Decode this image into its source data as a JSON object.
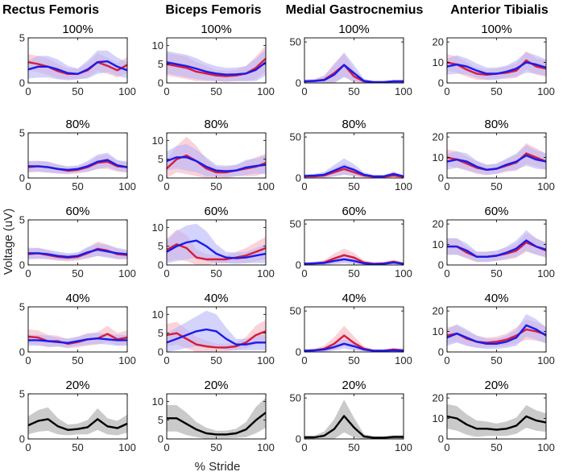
{
  "figure": {
    "ylabel": "Voltage (uV)",
    "xlabel": "% Stride"
  },
  "colors": {
    "series_a": "#d81b3a",
    "series_a_band": "#f7b4bf",
    "series_b": "#1a1aee",
    "series_b_band": "#b6b6f8",
    "pooled": "#000000",
    "pooled_band": "#c4c4c4"
  },
  "columns": [
    {
      "name": "Rectus Femoris",
      "ylim": [
        0,
        5
      ],
      "yticks": [
        0,
        5
      ]
    },
    {
      "name": "Biceps Femoris",
      "ylim": [
        0,
        12
      ],
      "yticks": [
        0,
        5,
        10
      ]
    },
    {
      "name": "Medial Gastrocnemius",
      "ylim": [
        0,
        55
      ],
      "yticks": [
        0,
        50
      ]
    },
    {
      "name": "Anterior Tibialis",
      "ylim": [
        0,
        22
      ],
      "yticks": [
        0,
        10,
        20
      ]
    }
  ],
  "rows": [
    "100%",
    "80%",
    "60%",
    "40%",
    "20%"
  ],
  "chart_data": {
    "type": "line",
    "x": [
      0,
      10,
      20,
      30,
      40,
      50,
      60,
      70,
      80,
      90,
      100
    ],
    "xlim": [
      0,
      100
    ],
    "xticks": [
      0,
      50,
      100
    ],
    "panels": [
      {
        "muscle": "Rectus Femoris",
        "condition": "100%",
        "a": [
          2.3,
          2.1,
          1.8,
          1.3,
          1.0,
          1.0,
          1.4,
          2.3,
          1.9,
          1.4,
          2.0
        ],
        "a_band": [
          0.9,
          0.9,
          0.9,
          0.8,
          0.6,
          0.6,
          0.8,
          1.0,
          0.9,
          0.8,
          0.9
        ],
        "b": [
          1.5,
          1.8,
          1.8,
          1.5,
          1.1,
          1.0,
          1.5,
          2.3,
          2.4,
          1.8,
          1.4
        ],
        "b_band": [
          1.0,
          1.2,
          1.2,
          1.1,
          0.8,
          0.6,
          1.0,
          1.3,
          1.2,
          1.0,
          0.9
        ]
      },
      {
        "muscle": "Biceps Femoris",
        "condition": "100%",
        "a": [
          5.0,
          4.5,
          4.0,
          3.0,
          2.5,
          2.0,
          1.8,
          2.0,
          2.5,
          4.0,
          6.5
        ],
        "a_band": [
          3.0,
          3.0,
          3.0,
          2.5,
          2.0,
          1.5,
          1.5,
          1.5,
          2.0,
          3.0,
          3.5
        ],
        "b": [
          5.5,
          5.0,
          4.5,
          3.8,
          3.0,
          2.5,
          2.2,
          2.3,
          2.5,
          3.5,
          5.5
        ],
        "b_band": [
          3.0,
          3.0,
          3.0,
          2.8,
          2.3,
          2.0,
          1.8,
          1.8,
          2.0,
          3.0,
          3.5
        ]
      },
      {
        "muscle": "Medial Gastrocnemius",
        "condition": "100%",
        "a": [
          2.0,
          2.5,
          4.0,
          12.0,
          22.0,
          8.0,
          2.0,
          1.0,
          1.0,
          2.0,
          2.0
        ],
        "a_band": [
          2.0,
          2.0,
          5.0,
          12.0,
          14.0,
          8.0,
          2.0,
          1.0,
          1.0,
          1.5,
          1.5
        ],
        "b": [
          2.0,
          2.5,
          3.5,
          10.0,
          22.0,
          12.0,
          2.5,
          1.0,
          1.0,
          2.0,
          2.0
        ],
        "b_band": [
          2.0,
          2.0,
          5.0,
          12.0,
          15.0,
          10.0,
          2.5,
          1.0,
          1.0,
          1.5,
          1.5
        ]
      },
      {
        "muscle": "Anterior Tibialis",
        "condition": "100%",
        "a": [
          10.0,
          9.0,
          6.5,
          4.5,
          4.0,
          4.5,
          5.0,
          6.0,
          11.0,
          8.0,
          7.0
        ],
        "a_band": [
          4.0,
          4.0,
          3.5,
          3.0,
          2.5,
          2.5,
          3.0,
          3.5,
          4.5,
          4.0,
          4.0
        ],
        "b": [
          8.0,
          9.0,
          8.0,
          6.0,
          4.5,
          4.5,
          5.5,
          7.0,
          10.0,
          9.0,
          7.5
        ],
        "b_band": [
          4.0,
          4.5,
          4.0,
          3.5,
          3.0,
          3.0,
          3.0,
          4.0,
          5.0,
          4.5,
          4.0
        ]
      },
      {
        "muscle": "Rectus Femoris",
        "condition": "80%",
        "a": [
          1.2,
          1.3,
          1.2,
          1.0,
          0.8,
          0.9,
          1.2,
          1.7,
          1.8,
          1.3,
          1.2
        ],
        "a_band": [
          0.6,
          0.6,
          0.6,
          0.5,
          0.4,
          0.4,
          0.5,
          0.7,
          0.8,
          0.6,
          0.6
        ],
        "b": [
          1.3,
          1.3,
          1.2,
          1.0,
          0.9,
          1.0,
          1.3,
          1.8,
          2.0,
          1.4,
          1.2
        ],
        "b_band": [
          0.6,
          0.6,
          0.6,
          0.5,
          0.4,
          0.4,
          0.6,
          0.8,
          0.8,
          0.6,
          0.6
        ]
      },
      {
        "muscle": "Biceps Femoris",
        "condition": "80%",
        "a": [
          2.5,
          5.0,
          6.0,
          4.5,
          2.5,
          1.5,
          1.5,
          2.0,
          2.5,
          3.0,
          4.0
        ],
        "a_band": [
          2.5,
          3.5,
          5.0,
          4.0,
          2.5,
          1.5,
          1.5,
          1.5,
          2.0,
          2.5,
          2.5
        ],
        "b": [
          4.5,
          5.5,
          5.5,
          4.5,
          3.0,
          2.0,
          1.8,
          2.0,
          2.8,
          3.2,
          3.5
        ],
        "b_band": [
          2.5,
          3.0,
          3.5,
          3.0,
          2.5,
          1.5,
          1.5,
          1.5,
          2.0,
          2.0,
          2.5
        ]
      },
      {
        "muscle": "Medial Gastrocnemius",
        "condition": "80%",
        "a": [
          2.0,
          2.0,
          3.0,
          7.0,
          11.0,
          7.0,
          3.0,
          1.5,
          1.5,
          3.0,
          1.5
        ],
        "a_band": [
          1.5,
          1.5,
          3.0,
          5.0,
          7.0,
          5.0,
          2.5,
          1.5,
          1.5,
          2.0,
          1.5
        ],
        "b": [
          2.5,
          3.0,
          4.0,
          9.0,
          14.0,
          10.0,
          4.0,
          2.0,
          2.0,
          5.0,
          2.0
        ],
        "b_band": [
          2.0,
          2.0,
          3.5,
          7.0,
          10.0,
          7.0,
          3.0,
          1.5,
          1.5,
          3.0,
          1.5
        ]
      },
      {
        "muscle": "Anterior Tibialis",
        "condition": "80%",
        "a": [
          10.0,
          9.0,
          7.0,
          5.0,
          4.0,
          4.5,
          6.0,
          7.5,
          12.0,
          10.0,
          8.0
        ],
        "a_band": [
          4.0,
          4.0,
          3.5,
          3.0,
          2.5,
          2.5,
          3.0,
          4.0,
          5.0,
          4.5,
          4.0
        ],
        "b": [
          8.0,
          9.0,
          8.0,
          5.5,
          4.0,
          4.5,
          6.5,
          8.0,
          11.0,
          9.0,
          8.0
        ],
        "b_band": [
          4.0,
          4.0,
          4.0,
          3.0,
          2.5,
          2.5,
          3.0,
          4.0,
          5.0,
          4.5,
          4.0
        ]
      },
      {
        "muscle": "Rectus Femoris",
        "condition": "60%",
        "a": [
          1.2,
          1.3,
          1.1,
          0.9,
          0.8,
          0.9,
          1.3,
          1.8,
          1.6,
          1.2,
          1.1
        ],
        "a_band": [
          0.6,
          0.6,
          0.5,
          0.4,
          0.4,
          0.4,
          0.6,
          0.8,
          0.7,
          0.6,
          0.5
        ],
        "b": [
          1.3,
          1.3,
          1.2,
          1.0,
          0.9,
          1.0,
          1.4,
          1.7,
          1.5,
          1.3,
          1.2
        ],
        "b_band": [
          0.6,
          0.6,
          0.5,
          0.5,
          0.4,
          0.4,
          0.6,
          0.7,
          0.7,
          0.6,
          0.5
        ]
      },
      {
        "muscle": "Biceps Femoris",
        "condition": "60%",
        "a": [
          4.0,
          5.5,
          4.5,
          2.0,
          1.5,
          1.5,
          1.5,
          2.0,
          2.5,
          3.5,
          4.5
        ],
        "a_band": [
          3.0,
          4.0,
          3.5,
          2.0,
          1.5,
          1.0,
          1.0,
          1.5,
          2.0,
          2.5,
          3.0
        ],
        "b": [
          3.5,
          5.0,
          6.0,
          6.5,
          5.0,
          3.0,
          2.0,
          1.8,
          2.0,
          2.5,
          3.0
        ],
        "b_band": [
          3.0,
          4.0,
          4.5,
          4.5,
          4.0,
          2.5,
          1.5,
          1.5,
          1.5,
          2.0,
          2.5
        ]
      },
      {
        "muscle": "Medial Gastrocnemius",
        "condition": "60%",
        "a": [
          1.5,
          2.0,
          3.0,
          8.0,
          12.0,
          9.0,
          3.0,
          1.5,
          2.0,
          4.0,
          1.5
        ],
        "a_band": [
          1.5,
          1.5,
          3.0,
          6.0,
          8.0,
          6.0,
          2.5,
          1.5,
          1.5,
          2.5,
          1.5
        ],
        "b": [
          1.5,
          2.0,
          2.5,
          5.0,
          7.0,
          5.0,
          2.0,
          1.0,
          1.5,
          3.0,
          1.5
        ],
        "b_band": [
          1.5,
          1.5,
          2.5,
          4.0,
          5.0,
          4.0,
          2.0,
          1.0,
          1.0,
          2.0,
          1.5
        ]
      },
      {
        "muscle": "Anterior Tibialis",
        "condition": "60%",
        "a": [
          9.0,
          9.0,
          6.0,
          4.0,
          4.0,
          4.5,
          5.5,
          7.0,
          11.0,
          9.0,
          7.0
        ],
        "a_band": [
          4.0,
          4.0,
          3.0,
          2.5,
          2.5,
          2.5,
          3.0,
          3.5,
          4.5,
          4.0,
          3.5
        ],
        "b": [
          9.0,
          9.0,
          7.0,
          4.0,
          4.0,
          4.5,
          6.0,
          8.0,
          12.0,
          9.0,
          7.5
        ],
        "b_band": [
          4.0,
          4.0,
          3.5,
          2.5,
          2.5,
          2.5,
          3.0,
          4.0,
          5.0,
          4.0,
          3.5
        ]
      },
      {
        "muscle": "Rectus Femoris",
        "condition": "40%",
        "a": [
          1.7,
          1.6,
          1.2,
          1.2,
          0.9,
          1.1,
          1.4,
          1.5,
          2.0,
          1.4,
          1.6
        ],
        "a_band": [
          0.8,
          0.8,
          0.7,
          0.6,
          0.5,
          0.6,
          0.7,
          0.7,
          0.9,
          0.7,
          0.8
        ],
        "b": [
          1.3,
          1.3,
          1.2,
          1.1,
          1.0,
          1.2,
          1.4,
          1.5,
          1.4,
          1.3,
          1.3
        ],
        "b_band": [
          0.6,
          0.6,
          0.6,
          0.5,
          0.5,
          0.5,
          0.6,
          0.6,
          0.6,
          0.6,
          0.6
        ]
      },
      {
        "muscle": "Biceps Femoris",
        "condition": "40%",
        "a": [
          4.5,
          5.0,
          3.5,
          2.0,
          1.5,
          1.2,
          1.2,
          1.5,
          2.5,
          4.5,
          5.5
        ],
        "a_band": [
          3.0,
          3.0,
          2.5,
          2.0,
          1.5,
          1.0,
          1.0,
          1.0,
          1.5,
          2.5,
          3.0
        ],
        "b": [
          2.5,
          3.5,
          4.5,
          5.5,
          6.0,
          5.5,
          3.5,
          2.0,
          2.0,
          2.5,
          2.5
        ],
        "b_band": [
          2.5,
          3.0,
          3.5,
          4.0,
          5.0,
          4.5,
          3.0,
          1.5,
          1.5,
          2.0,
          2.0
        ]
      },
      {
        "muscle": "Medial Gastrocnemius",
        "condition": "40%",
        "a": [
          1.5,
          2.0,
          4.0,
          10.0,
          20.0,
          11.0,
          4.0,
          1.5,
          1.5,
          3.0,
          2.0
        ],
        "a_band": [
          1.5,
          2.0,
          4.0,
          8.0,
          12.0,
          8.0,
          3.0,
          1.5,
          1.5,
          2.0,
          1.5
        ],
        "b": [
          1.5,
          2.0,
          3.0,
          6.0,
          10.0,
          7.0,
          3.0,
          1.5,
          1.5,
          2.0,
          1.5
        ],
        "b_band": [
          1.5,
          1.5,
          2.5,
          4.0,
          6.0,
          5.0,
          2.0,
          1.0,
          1.0,
          1.5,
          1.5
        ]
      },
      {
        "muscle": "Anterior Tibialis",
        "condition": "40%",
        "a": [
          8.0,
          9.0,
          6.5,
          5.0,
          4.5,
          5.0,
          6.0,
          8.0,
          11.0,
          10.0,
          8.5
        ],
        "a_band": [
          4.0,
          4.0,
          3.5,
          3.0,
          2.5,
          2.5,
          3.0,
          4.0,
          5.0,
          4.5,
          4.0
        ],
        "b": [
          7.0,
          9.0,
          7.0,
          5.0,
          4.0,
          4.0,
          5.0,
          7.0,
          13.0,
          11.0,
          8.0
        ],
        "b_band": [
          4.0,
          4.5,
          4.0,
          3.0,
          2.5,
          2.5,
          3.0,
          4.0,
          5.5,
          5.0,
          4.0
        ]
      },
      {
        "muscle": "Rectus Femoris",
        "condition": "20%",
        "k": [
          1.5,
          2.0,
          2.2,
          1.4,
          1.0,
          1.1,
          1.3,
          2.2,
          1.4,
          1.2,
          1.7
        ],
        "k_band": [
          1.0,
          1.2,
          1.3,
          0.9,
          0.6,
          0.6,
          0.8,
          1.2,
          0.9,
          0.8,
          1.0
        ]
      },
      {
        "muscle": "Biceps Femoris",
        "condition": "20%",
        "k": [
          5.5,
          5.5,
          4.0,
          2.5,
          1.5,
          1.2,
          1.2,
          1.5,
          2.5,
          5.0,
          7.0
        ],
        "k_band": [
          3.5,
          3.5,
          3.0,
          2.0,
          1.5,
          1.0,
          1.0,
          1.2,
          2.0,
          3.5,
          4.0
        ]
      },
      {
        "muscle": "Medial Gastrocnemius",
        "condition": "20%",
        "k": [
          2.0,
          2.0,
          4.0,
          12.0,
          28.0,
          14.0,
          3.0,
          1.5,
          1.5,
          2.5,
          2.5
        ],
        "k_band": [
          2.0,
          2.0,
          5.0,
          12.0,
          20.0,
          12.0,
          3.0,
          1.5,
          1.5,
          2.0,
          2.0
        ]
      },
      {
        "muscle": "Anterior Tibialis",
        "condition": "20%",
        "k": [
          11.0,
          10.0,
          7.0,
          5.0,
          5.0,
          4.5,
          5.0,
          6.5,
          11.0,
          9.0,
          8.0
        ],
        "k_band": [
          6.0,
          6.0,
          5.0,
          4.0,
          3.5,
          3.0,
          3.5,
          4.0,
          5.5,
          5.0,
          4.5
        ]
      }
    ]
  }
}
